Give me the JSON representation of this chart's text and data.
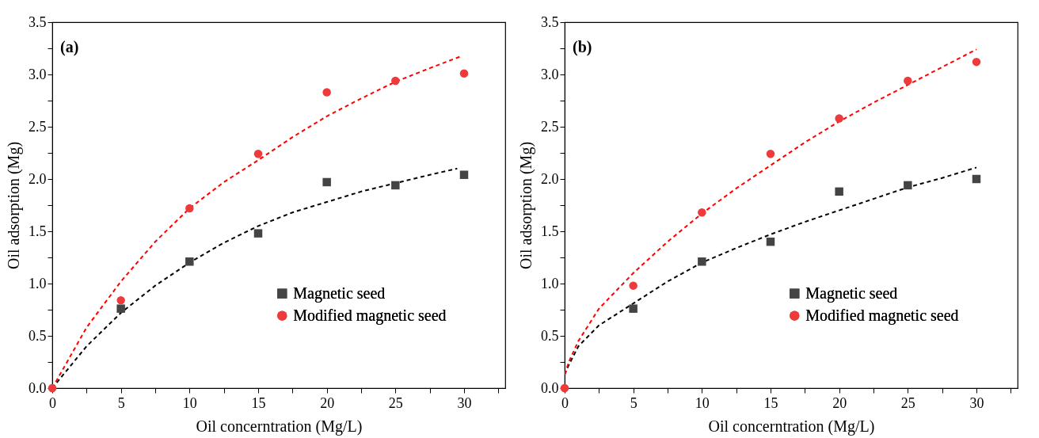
{
  "chart_data": [
    {
      "type": "scatter",
      "annotations": [
        "(a)"
      ],
      "xlabel": "Oil concerntration (Mg/L)",
      "ylabel": "Oil adsorption (Mg)",
      "xlim": [
        0,
        33
      ],
      "ylim": [
        0,
        3.5
      ],
      "xticks": [
        0,
        {
          "value": 2.5,
          "label": null
        },
        5,
        {
          "value": 7.5,
          "label": null
        },
        10,
        {
          "value": 12.5,
          "label": null
        },
        15,
        {
          "value": 17.5,
          "label": null
        },
        20,
        {
          "value": 22.5,
          "label": null
        },
        25,
        {
          "value": 27.5,
          "label": null
        },
        30,
        {
          "value": 32.5,
          "label": null
        }
      ],
      "yticks": [
        {
          "value": 0,
          "label": "0.0"
        },
        {
          "value": 0.25,
          "label": null
        },
        {
          "value": 0.5,
          "label": "0.5"
        },
        {
          "value": 0.75,
          "label": null
        },
        {
          "value": 1,
          "label": "1.0"
        },
        {
          "value": 1.25,
          "label": null
        },
        {
          "value": 1.5,
          "label": "1.5"
        },
        {
          "value": 1.75,
          "label": null
        },
        {
          "value": 2,
          "label": "2.0"
        },
        {
          "value": 2.25,
          "label": null
        },
        {
          "value": 2.5,
          "label": "2.5"
        },
        {
          "value": 2.75,
          "label": null
        },
        {
          "value": 3,
          "label": "3.0"
        },
        {
          "value": 3.25,
          "label": null
        },
        {
          "value": 3.5,
          "label": "3.5"
        }
      ],
      "legend": "bottom right",
      "series": [
        {
          "type": "line",
          "line_style": "dashed",
          "marker": "none",
          "color": "#000000",
          "x": [
            0,
            2.5,
            5,
            7.5,
            10,
            12.5,
            15,
            17.5,
            20,
            22.5,
            25,
            27.5,
            29.5
          ],
          "values": [
            0,
            0.4,
            0.72,
            0.98,
            1.2,
            1.39,
            1.55,
            1.68,
            1.78,
            1.88,
            1.96,
            2.04,
            2.1
          ]
        },
        {
          "type": "line",
          "line_style": "dashed",
          "marker": "none",
          "color": "#ff0000",
          "x": [
            0,
            2.5,
            5,
            7.5,
            10,
            12.5,
            15,
            17.5,
            20,
            22.5,
            25,
            27.5,
            29.7
          ],
          "values": [
            0,
            0.58,
            1.02,
            1.4,
            1.72,
            1.97,
            2.18,
            2.4,
            2.6,
            2.77,
            2.93,
            3.06,
            3.17
          ]
        },
        {
          "type": "scatter",
          "name": "Magnetic seed",
          "marker": "square",
          "color": "#444444",
          "x": [
            5,
            10,
            15,
            20,
            25,
            30
          ],
          "values": [
            0.76,
            1.21,
            1.48,
            1.97,
            1.94,
            2.04
          ]
        },
        {
          "type": "scatter",
          "name": "Modified magnetic seed",
          "marker": "circle",
          "color": "#ee3a3a",
          "x": [
            0,
            5,
            10,
            15,
            20,
            25,
            30
          ],
          "values": [
            0,
            0.84,
            1.72,
            2.24,
            2.83,
            2.94,
            3.01
          ]
        }
      ]
    },
    {
      "type": "scatter",
      "annotations": [
        "(b)"
      ],
      "xlabel": "Oil concerntration (Mg/L)",
      "ylabel": "Oil adsorption (Mg)",
      "xlim": [
        0,
        33
      ],
      "ylim": [
        0,
        3.5
      ],
      "xticks": [
        0,
        {
          "value": 2.5,
          "label": null
        },
        5,
        {
          "value": 7.5,
          "label": null
        },
        10,
        {
          "value": 12.5,
          "label": null
        },
        15,
        {
          "value": 17.5,
          "label": null
        },
        20,
        {
          "value": 22.5,
          "label": null
        },
        25,
        {
          "value": 27.5,
          "label": null
        },
        30,
        {
          "value": 32.5,
          "label": null
        }
      ],
      "yticks": [
        {
          "value": 0,
          "label": "0.0"
        },
        {
          "value": 0.25,
          "label": null
        },
        {
          "value": 0.5,
          "label": "0.5"
        },
        {
          "value": 0.75,
          "label": null
        },
        {
          "value": 1,
          "label": "1.0"
        },
        {
          "value": 1.25,
          "label": null
        },
        {
          "value": 1.5,
          "label": "1.5"
        },
        {
          "value": 1.75,
          "label": null
        },
        {
          "value": 2,
          "label": "2.0"
        },
        {
          "value": 2.25,
          "label": null
        },
        {
          "value": 2.5,
          "label": "2.5"
        },
        {
          "value": 2.75,
          "label": null
        },
        {
          "value": 3,
          "label": "3.0"
        },
        {
          "value": 3.25,
          "label": null
        },
        {
          "value": 3.5,
          "label": "3.5"
        }
      ],
      "legend": "bottom right",
      "series": [
        {
          "type": "line",
          "line_style": "dashed",
          "marker": "none",
          "color": "#000000",
          "x": [
            0,
            0.3,
            1,
            2.5,
            5,
            7.5,
            10,
            12.5,
            15,
            17.5,
            20,
            22.5,
            25,
            27.5,
            30
          ],
          "values": [
            0.13,
            0.22,
            0.4,
            0.6,
            0.81,
            1.02,
            1.2,
            1.34,
            1.47,
            1.59,
            1.7,
            1.81,
            1.92,
            2.01,
            2.11
          ]
        },
        {
          "type": "line",
          "line_style": "dashed",
          "marker": "none",
          "color": "#ff0000",
          "x": [
            0,
            0.3,
            1,
            2.5,
            5,
            7.5,
            10,
            12.5,
            15,
            17.5,
            20,
            22.5,
            25,
            27.5,
            30
          ],
          "values": [
            0.13,
            0.25,
            0.45,
            0.76,
            1.1,
            1.4,
            1.67,
            1.91,
            2.13,
            2.35,
            2.55,
            2.73,
            2.9,
            3.07,
            3.24
          ]
        },
        {
          "type": "scatter",
          "name": "Magnetic seed",
          "marker": "square",
          "color": "#444444",
          "x": [
            5,
            10,
            15,
            20,
            25,
            30
          ],
          "values": [
            0.76,
            1.21,
            1.4,
            1.88,
            1.94,
            2
          ]
        },
        {
          "type": "scatter",
          "name": "Modified magnetic seed",
          "marker": "circle",
          "color": "#ee3a3a",
          "x": [
            0,
            5,
            10,
            15,
            20,
            25,
            30
          ],
          "values": [
            0,
            0.98,
            1.68,
            2.24,
            2.58,
            2.94,
            3.12
          ]
        }
      ]
    }
  ]
}
